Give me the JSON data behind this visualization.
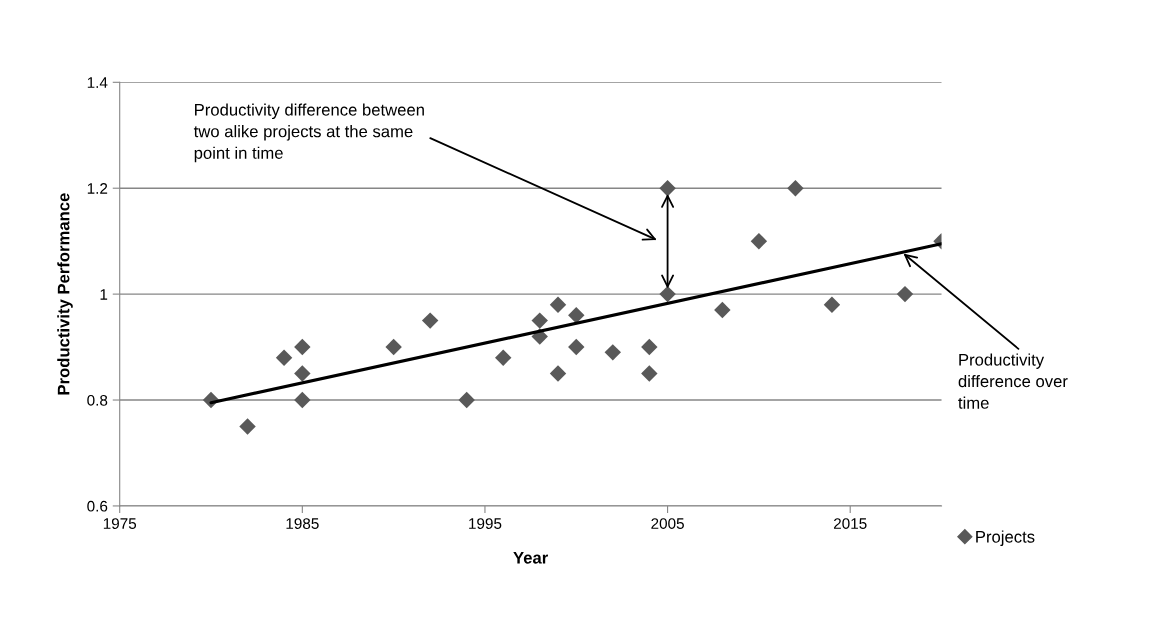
{
  "chart_data": {
    "type": "scatter",
    "xlabel": "Year",
    "ylabel": "Productivity Performance",
    "xlim": [
      1975,
      2020
    ],
    "xticks": [
      1975,
      1985,
      1995,
      2005,
      2015
    ],
    "ylim": [
      0.6,
      1.4
    ],
    "yticks": [
      0.6,
      0.8,
      1,
      1.2,
      1.4
    ],
    "grid": "y",
    "legend": "bottom right",
    "marker": "diamond",
    "series": [
      {
        "name": "Projects",
        "color": "#595959",
        "x": [
          1980,
          1982,
          1984,
          1985,
          1985,
          1985,
          1990,
          1992,
          1994,
          1996,
          1998,
          1998,
          1999,
          1999,
          2000,
          2000,
          2002,
          2004,
          2004,
          2005,
          2005,
          2008,
          2010,
          2012,
          2014,
          2018,
          2020
        ],
        "values": [
          0.8,
          0.75,
          0.88,
          0.9,
          0.85,
          0.8,
          0.9,
          0.95,
          0.8,
          0.88,
          0.95,
          0.92,
          0.98,
          0.85,
          0.96,
          0.9,
          0.89,
          0.9,
          0.85,
          1.2,
          1.0,
          0.97,
          1.1,
          1.2,
          0.98,
          1.0,
          1.1
        ]
      },
      {
        "type": "line",
        "marker": "none",
        "color": "#000000",
        "x": [
          1980,
          2020
        ],
        "values": [
          0.795,
          1.095
        ]
      }
    ],
    "annotations": [
      "Productivity difference between\ntwo alike projects at the same\npoint in time",
      {
        "text": "Productivity\ndifference over\ntime",
        "x": 2017.8,
        "y": 1.08
      }
    ]
  }
}
